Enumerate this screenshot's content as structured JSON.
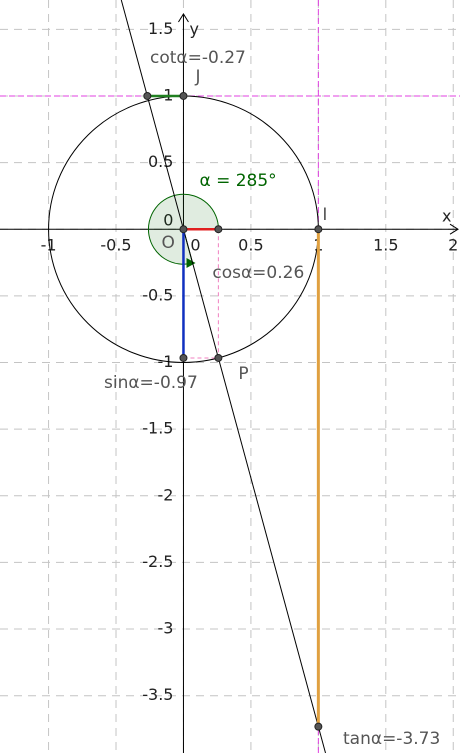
{
  "diagram": {
    "angle_deg": 285,
    "xlim": [
      -1.36,
      2.05
    ],
    "ylim": [
      -3.93,
      1.72
    ],
    "xticks": [
      -1,
      -0.5,
      0,
      0.5,
      1,
      1.5,
      2
    ],
    "yticks": [
      -3.5,
      -3,
      -2.5,
      -2,
      -1.5,
      -1,
      -0.5,
      0,
      0.5,
      1,
      1.5
    ],
    "x_axis_label": "x",
    "y_axis_label": "y",
    "labels": {
      "angle": "α = 285°",
      "cot": "cotα=-0.27",
      "cos": "cosα=0.26",
      "sin": "sinα=-0.97",
      "tan": "tanα=-3.73",
      "O": "O",
      "I": "I",
      "J": "J",
      "P": "P"
    }
  }
}
